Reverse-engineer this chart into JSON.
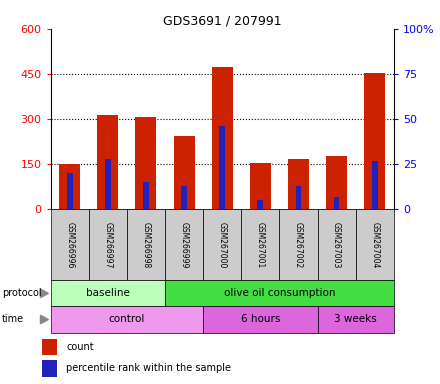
{
  "title": "GDS3691 / 207991",
  "categories": [
    "GSM266996",
    "GSM266997",
    "GSM266998",
    "GSM266999",
    "GSM267000",
    "GSM267001",
    "GSM267002",
    "GSM267003",
    "GSM267004"
  ],
  "count_values": [
    152,
    312,
    308,
    242,
    472,
    155,
    167,
    177,
    452
  ],
  "percentile_values": [
    20,
    28,
    15,
    13,
    46,
    5,
    13,
    7,
    27
  ],
  "left_ylim": [
    0,
    600
  ],
  "right_ylim": [
    0,
    100
  ],
  "left_yticks": [
    0,
    150,
    300,
    450,
    600
  ],
  "right_yticks": [
    0,
    25,
    50,
    75,
    100
  ],
  "bar_color": "#cc2200",
  "percentile_color": "#2222bb",
  "protocol_groups": [
    {
      "label": "baseline",
      "start": 0,
      "end": 3,
      "color": "#bbffbb"
    },
    {
      "label": "olive oil consumption",
      "start": 3,
      "end": 9,
      "color": "#44dd44"
    }
  ],
  "time_groups": [
    {
      "label": "control",
      "start": 0,
      "end": 4,
      "color": "#ee99ee"
    },
    {
      "label": "6 hours",
      "start": 4,
      "end": 7,
      "color": "#dd66dd"
    },
    {
      "label": "3 weeks",
      "start": 7,
      "end": 9,
      "color": "#dd66dd"
    }
  ],
  "legend_count_label": "count",
  "legend_percentile_label": "percentile rank within the sample",
  "protocol_label": "protocol",
  "time_label": "time",
  "background_color": "#ffffff",
  "bar_width": 0.55,
  "blue_bar_width": 0.15
}
